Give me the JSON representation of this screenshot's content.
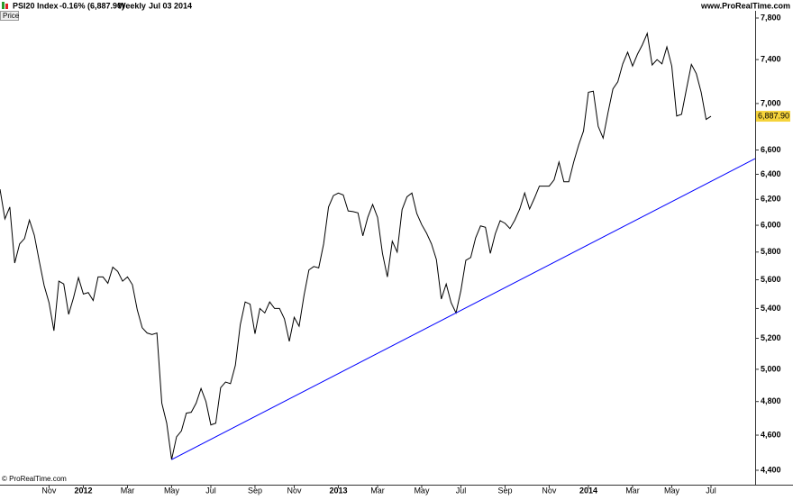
{
  "header": {
    "instrument": "PSI20 Index",
    "change": "-0.16% (6,887.90)",
    "period": "Weekly",
    "date": "Jul 03 2014",
    "site": "www.ProRealTime.com"
  },
  "panel_label": "Price",
  "footer": "© ProRealTime.com",
  "chart_data": {
    "type": "line",
    "color": "#000000",
    "log_scale": true,
    "grid": false,
    "ylim": [
      4400,
      7800
    ],
    "yticks": [
      {
        "value": 4400,
        "label": "4,400"
      },
      {
        "value": 4600,
        "label": "4,600"
      },
      {
        "value": 4800,
        "label": "4,800"
      },
      {
        "value": 5000,
        "label": "5,000"
      },
      {
        "value": 5200,
        "label": "5,200"
      },
      {
        "value": 5400,
        "label": "5,400"
      },
      {
        "value": 5600,
        "label": "5,600"
      },
      {
        "value": 5800,
        "label": "5,800"
      },
      {
        "value": 6000,
        "label": "6,000"
      },
      {
        "value": 6200,
        "label": "6,200"
      },
      {
        "value": 6400,
        "label": "6,400"
      },
      {
        "value": 6600,
        "label": "6,600"
      },
      {
        "value": 7000,
        "label": "7,000"
      },
      {
        "value": 7400,
        "label": "7,400"
      },
      {
        "value": 7800,
        "label": "7,800"
      }
    ],
    "categories": [
      null,
      null,
      null,
      null,
      null,
      null,
      null,
      null,
      null,
      null,
      "Nov",
      null,
      null,
      null,
      null,
      null,
      null,
      "2012",
      null,
      null,
      null,
      null,
      null,
      null,
      null,
      null,
      "Mar",
      null,
      null,
      null,
      null,
      null,
      null,
      null,
      null,
      "May",
      null,
      null,
      null,
      null,
      null,
      null,
      null,
      "Jul",
      null,
      null,
      null,
      null,
      null,
      null,
      null,
      null,
      "Sep",
      null,
      null,
      null,
      null,
      null,
      null,
      null,
      "Nov",
      null,
      null,
      null,
      null,
      null,
      null,
      null,
      null,
      "2013",
      null,
      null,
      null,
      null,
      null,
      null,
      null,
      "Mar",
      null,
      null,
      null,
      null,
      null,
      null,
      null,
      null,
      "May",
      null,
      null,
      null,
      null,
      null,
      null,
      null,
      "Jul",
      null,
      null,
      null,
      null,
      null,
      null,
      null,
      null,
      "Sep",
      null,
      null,
      null,
      null,
      null,
      null,
      null,
      null,
      "Nov",
      null,
      null,
      null,
      null,
      null,
      null,
      null,
      "2014",
      null,
      null,
      null,
      null,
      null,
      null,
      null,
      null,
      "Mar",
      null,
      null,
      null,
      null,
      null,
      null,
      null,
      "May",
      null,
      null,
      null,
      null,
      null,
      null,
      null,
      "Jul"
    ],
    "values": [
      6280,
      6049,
      6140,
      5720,
      5860,
      5900,
      6040,
      5925,
      5735,
      5560,
      5440,
      5250,
      5590,
      5570,
      5360,
      5475,
      5615,
      5500,
      5510,
      5455,
      5620,
      5620,
      5575,
      5690,
      5660,
      5590,
      5620,
      5565,
      5390,
      5270,
      5235,
      5225,
      5235,
      4790,
      4670,
      4460,
      4590,
      4625,
      4730,
      4735,
      4790,
      4880,
      4800,
      4660,
      4670,
      4885,
      4920,
      4910,
      5025,
      5290,
      5445,
      5430,
      5230,
      5400,
      5370,
      5445,
      5400,
      5400,
      5330,
      5180,
      5340,
      5280,
      5490,
      5670,
      5695,
      5685,
      5860,
      6140,
      6230,
      6250,
      6235,
      6110,
      6105,
      6095,
      5920,
      6060,
      6160,
      6060,
      5790,
      5620,
      5880,
      5800,
      6120,
      6220,
      6250,
      6090,
      6005,
      5940,
      5860,
      5745,
      5465,
      5570,
      5440,
      5370,
      5525,
      5740,
      5760,
      5905,
      5995,
      5985,
      5790,
      5935,
      6035,
      6015,
      5975,
      6040,
      6125,
      6250,
      6125,
      6210,
      6305,
      6305,
      6305,
      6355,
      6500,
      6340,
      6340,
      6500,
      6640,
      6760,
      7100,
      7110,
      6800,
      6700,
      6920,
      7130,
      7195,
      7360,
      7470,
      7340,
      7450,
      7540,
      7650,
      7350,
      7400,
      7360,
      7520,
      7340,
      6890,
      6905,
      7130,
      7355,
      7270,
      7100,
      6860,
      6887.9
    ],
    "last_value_label": "6,887.90",
    "last_value_color": "#f5d33b",
    "trendline": {
      "color": "#0000ff",
      "points": [
        [
          35,
          4460
        ],
        [
          93,
          5370
        ]
      ]
    }
  }
}
